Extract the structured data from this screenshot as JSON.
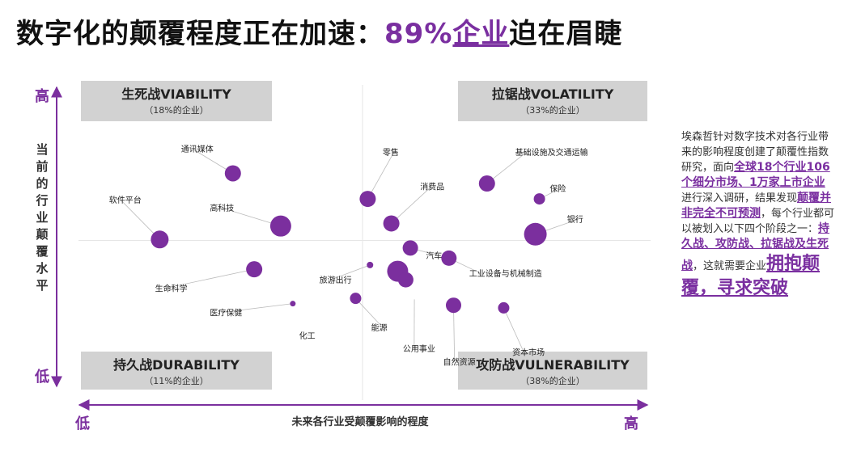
{
  "page": {
    "title_prefix": "数字化的颠覆程度正在加速：",
    "title_pct": "89%",
    "title_company": "企业",
    "title_suffix": "迫在眉睫"
  },
  "side_text": {
    "s1": "埃森哲针对数字技术对各行业带来的影响程度创建了颠覆性指数研究，面向",
    "s2": "全球18个行业106个细分市场、1万家上市企业",
    "s3": "进行深入调研，结果发现",
    "s4": "颠覆并非完全不可预测",
    "s5": "，每个行业都可以被划入以下四个阶段之一：",
    "s6": "持久战、攻防战、拉锯战及生死战",
    "s7": "，这就需要企业",
    "s8": "拥抱颠覆，寻求突破"
  },
  "chart_data": {
    "type": "scatter",
    "xlabel": "未来各行业受颠覆影响的程度",
    "ylabel": "当前的行业颠覆水平",
    "x_low": "低",
    "x_high": "高",
    "y_low": "低",
    "y_high": "高",
    "xlim": [
      0,
      100
    ],
    "ylim": [
      0,
      100
    ],
    "colors": {
      "point": "#7b2f9e",
      "axis": "#7b2f9e",
      "quadrant_bg": "#d2d2d2",
      "leader": "#bbbbbb"
    },
    "quadrants": [
      {
        "name": "生死战VIABILITY",
        "share": "（18%的企业）",
        "pos": "top-left"
      },
      {
        "name": "拉锯战VOLATILITY",
        "share": "（33%的企业）",
        "pos": "top-right"
      },
      {
        "name": "持久战DURABILITY",
        "share": "（11%的企业）",
        "pos": "bottom-left"
      },
      {
        "name": "攻防战VULNERABILITY",
        "share": "（38%的企业）",
        "pos": "bottom-right"
      }
    ],
    "points": [
      {
        "label": "通讯媒体",
        "x": 27.5,
        "y": 70.5,
        "size": 10,
        "lx": 18.5,
        "ly": 77
      },
      {
        "label": "软件平台",
        "x": 14.8,
        "y": 50.3,
        "size": 11,
        "lx": 6,
        "ly": 61.5
      },
      {
        "label": "高科技",
        "x": 35.8,
        "y": 54.4,
        "size": 13,
        "lx": 23.5,
        "ly": 59
      },
      {
        "label": "生命科学",
        "x": 31.2,
        "y": 41.2,
        "size": 10,
        "lx": 14,
        "ly": 34.5
      },
      {
        "label": "医疗保健",
        "x": 37.9,
        "y": 30.7,
        "size": 3.5,
        "lx": 23.5,
        "ly": 27
      },
      {
        "label": "化工",
        "x": 40.0,
        "y": 21.3,
        "size": 0,
        "lx": 39,
        "ly": 20
      },
      {
        "label": "旅游出行",
        "x": 51.3,
        "y": 42.5,
        "size": 4,
        "lx": 42.5,
        "ly": 37
      },
      {
        "label": "零售",
        "x": 50.9,
        "y": 62.7,
        "size": 10,
        "lx": 53.5,
        "ly": 76
      },
      {
        "label": "消费品",
        "x": 55.0,
        "y": 55.2,
        "size": 10,
        "lx": 60,
        "ly": 65.5
      },
      {
        "label": "汽车",
        "x": 58.3,
        "y": 47.7,
        "size": 9.5,
        "lx": 61,
        "ly": 44.5
      },
      {
        "label": "能源",
        "x": 48.8,
        "y": 32.3,
        "size": 7,
        "lx": 51.5,
        "ly": 22.5
      },
      {
        "label": "",
        "x": 56.1,
        "y": 40.6,
        "size": 13,
        "lx": 0,
        "ly": 0
      },
      {
        "label": "",
        "x": 57.5,
        "y": 38.0,
        "size": 9.5,
        "lx": 0,
        "ly": 0
      },
      {
        "label": "公用事业",
        "x": 59,
        "y": 32,
        "size": 0,
        "lx": 57,
        "ly": 16
      },
      {
        "label": "自然资源",
        "x": 65.8,
        "y": 30.2,
        "size": 9.5,
        "lx": 64,
        "ly": 12
      },
      {
        "label": "工业设备与机械制造",
        "x": 65.0,
        "y": 44.6,
        "size": 9.5,
        "lx": 68.5,
        "ly": 39
      },
      {
        "label": "资本市场",
        "x": 74.5,
        "y": 29.4,
        "size": 7,
        "lx": 76,
        "ly": 15
      },
      {
        "label": "基础设施及交通运输",
        "x": 71.6,
        "y": 67.4,
        "size": 10,
        "lx": 76.5,
        "ly": 76
      },
      {
        "label": "保险",
        "x": 80.7,
        "y": 62.7,
        "size": 7,
        "lx": 82.5,
        "ly": 65
      },
      {
        "label": "银行",
        "x": 80.0,
        "y": 51.9,
        "size": 14,
        "lx": 85.5,
        "ly": 55.5
      }
    ]
  }
}
